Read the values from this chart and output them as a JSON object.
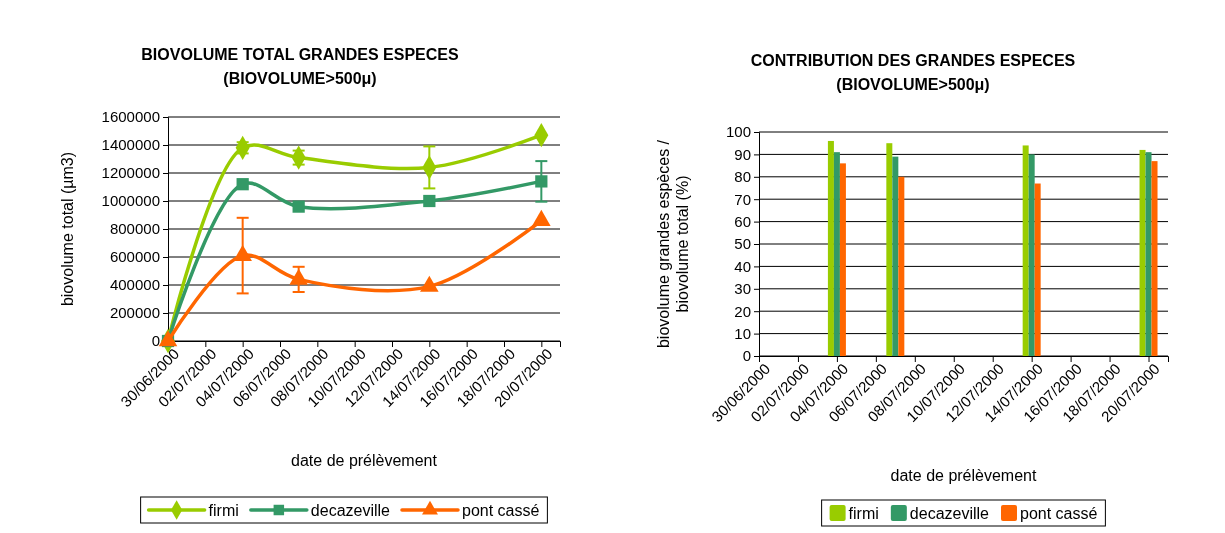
{
  "chart_data": [
    {
      "type": "line",
      "title": "BIOVOLUME TOTAL GRANDES ESPECES (BIOVOLUME>500μ)",
      "xlabel": "date de prélèvement",
      "ylabel": "biovolume total (µm3)",
      "x": [
        "2000-06-30",
        "2000-07-04",
        "2000-07-07",
        "2000-07-14",
        "2000-07-20"
      ],
      "series": [
        {
          "name": "firmi",
          "color": "#99cc00",
          "marker": "diamond",
          "values": [
            0,
            1380000,
            1310000,
            1240000,
            1470000
          ],
          "errors": [
            null,
            40000,
            50000,
            150000,
            null
          ]
        },
        {
          "name": "decazeville",
          "color": "#339966",
          "marker": "square",
          "values": [
            0,
            1120000,
            960000,
            1000000,
            1140000
          ],
          "errors": [
            null,
            null,
            null,
            null,
            145000
          ]
        },
        {
          "name": "pont cassé",
          "color": "#ff6600",
          "marker": "triangle",
          "values": [
            0,
            610000,
            440000,
            390000,
            860000
          ],
          "errors": [
            null,
            270000,
            90000,
            null,
            null
          ]
        }
      ],
      "xlim": [
        "2000-06-30",
        "2000-07-21"
      ],
      "xticks": [
        {
          "value": "2000-06-30",
          "label": "30/06/2000"
        },
        {
          "value": "2000-07-02",
          "label": "02/07/2000"
        },
        {
          "value": "2000-07-04",
          "label": "04/07/2000"
        },
        {
          "value": "2000-07-06",
          "label": "06/07/2000"
        },
        {
          "value": "2000-07-08",
          "label": "08/07/2000"
        },
        {
          "value": "2000-07-10",
          "label": "10/07/2000"
        },
        {
          "value": "2000-07-12",
          "label": "12/07/2000"
        },
        {
          "value": "2000-07-14",
          "label": "14/07/2000"
        },
        {
          "value": "2000-07-16",
          "label": "16/07/2000"
        },
        {
          "value": "2000-07-18",
          "label": "18/07/2000"
        },
        {
          "value": "2000-07-20",
          "label": "20/07/2000"
        }
      ],
      "ylim": [
        0,
        1600000
      ],
      "yticks": [
        0,
        200000,
        400000,
        600000,
        800000,
        1000000,
        1200000,
        1400000,
        1600000
      ],
      "grid": "y",
      "legend": "bottom"
    },
    {
      "type": "bar",
      "title": "CONTRIBUTION DES GRANDES ESPECES (BIOVOLUME>500μ)",
      "xlabel": "date de prélèvement",
      "ylabel": "biovolume grandes espèces / biovolume total (%)",
      "x": [
        "2000-07-04",
        "2000-07-07",
        "2000-07-14",
        "2000-07-20"
      ],
      "series": [
        {
          "name": "firmi",
          "color": "#99cc00",
          "values": [
            96,
            95,
            94,
            92
          ]
        },
        {
          "name": "decazeville",
          "color": "#339966",
          "values": [
            91,
            89,
            90,
            91
          ]
        },
        {
          "name": "pont cassé",
          "color": "#ff6600",
          "values": [
            86,
            80,
            77,
            87
          ]
        }
      ],
      "xlim": [
        "2000-06-30",
        "2000-07-21"
      ],
      "xticks": [
        {
          "value": "2000-06-30",
          "label": "30/06/2000"
        },
        {
          "value": "2000-07-02",
          "label": "02/07/2000"
        },
        {
          "value": "2000-07-04",
          "label": "04/07/2000"
        },
        {
          "value": "2000-07-06",
          "label": "06/07/2000"
        },
        {
          "value": "2000-07-08",
          "label": "08/07/2000"
        },
        {
          "value": "2000-07-10",
          "label": "10/07/2000"
        },
        {
          "value": "2000-07-12",
          "label": "12/07/2000"
        },
        {
          "value": "2000-07-14",
          "label": "14/07/2000"
        },
        {
          "value": "2000-07-16",
          "label": "16/07/2000"
        },
        {
          "value": "2000-07-18",
          "label": "18/07/2000"
        },
        {
          "value": "2000-07-20",
          "label": "20/07/2000"
        }
      ],
      "ylim": [
        0,
        100
      ],
      "yticks": [
        0,
        10,
        20,
        30,
        40,
        50,
        60,
        70,
        80,
        90,
        100
      ],
      "grid": "y",
      "legend": "bottom"
    }
  ]
}
